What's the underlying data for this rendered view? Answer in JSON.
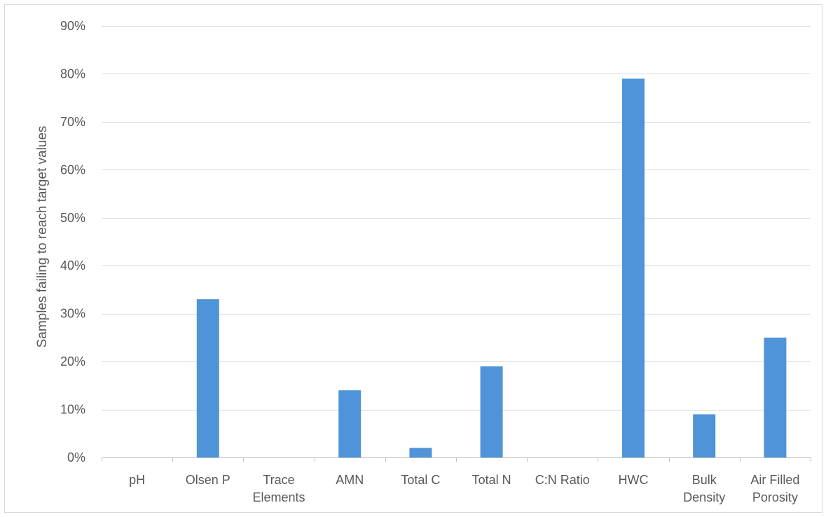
{
  "chart_data": {
    "type": "bar",
    "title": "",
    "xlabel": "",
    "ylabel": "Samples failing to reach target values",
    "categories": [
      [
        "pH"
      ],
      [
        "Olsen P"
      ],
      [
        "Trace",
        "Elements"
      ],
      [
        "AMN"
      ],
      [
        "Total C"
      ],
      [
        "Total N"
      ],
      [
        "C:N Ratio"
      ],
      [
        "HWC"
      ],
      [
        "Bulk",
        "Density"
      ],
      [
        "Air Filled",
        "Porosity"
      ]
    ],
    "values": [
      0,
      33,
      0,
      14,
      2,
      19,
      0,
      79,
      9,
      25
    ],
    "ylim": [
      0,
      90
    ],
    "yticks": [
      0,
      10,
      20,
      30,
      40,
      50,
      60,
      70,
      80,
      90
    ],
    "ytick_suffix": "%",
    "grid": true,
    "legend": "none",
    "bar_color": "#4f94d8",
    "grid_color": "#d9d9d9",
    "axis_color": "#bfbfbf"
  }
}
